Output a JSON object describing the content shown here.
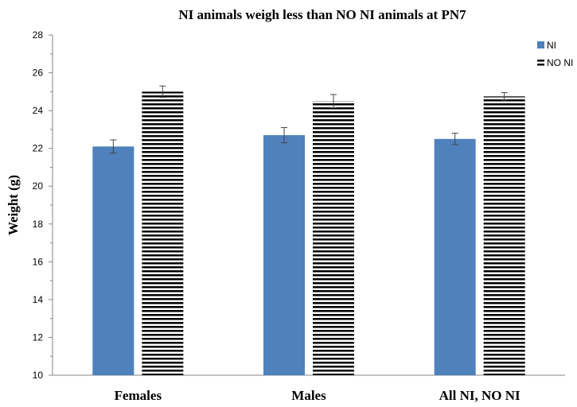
{
  "chart_data": {
    "type": "bar",
    "title": "NI animals weigh less than NO NI animals at PN7",
    "xlabel": "",
    "ylabel": "Weight (g)",
    "ylim": [
      10,
      28
    ],
    "yticks": [
      10,
      12,
      14,
      16,
      18,
      20,
      22,
      24,
      26,
      28
    ],
    "categories": [
      "Females",
      "Males",
      "All NI, NO NI"
    ],
    "series": [
      {
        "name": "NI",
        "values": [
          22.1,
          22.7,
          22.5
        ],
        "errors": [
          0.35,
          0.4,
          0.3
        ],
        "color": "#4f81bd",
        "pattern": "solid"
      },
      {
        "name": "NO NI",
        "values": [
          25.0,
          24.5,
          24.75
        ],
        "errors": [
          0.3,
          0.35,
          0.2
        ],
        "color": "#000000",
        "pattern": "horizontal-stripes"
      }
    ],
    "grid": false,
    "legend_position": "top-right"
  }
}
